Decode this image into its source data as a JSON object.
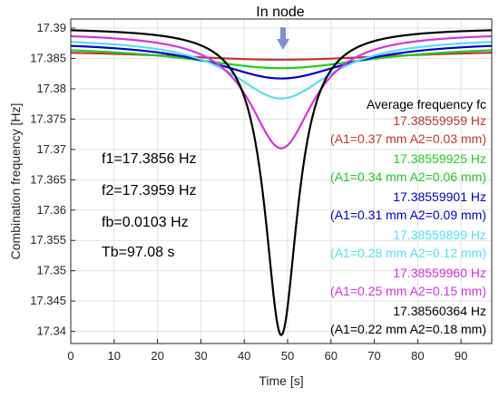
{
  "chart_data": {
    "type": "line",
    "title": "",
    "xlabel": "Time [s]",
    "ylabel": "Combination frequency [Hz]",
    "xlim": [
      0,
      97.08
    ],
    "ylim": [
      17.338,
      17.3915
    ],
    "x_ticks": [
      0,
      10,
      20,
      30,
      40,
      50,
      60,
      70,
      80,
      90
    ],
    "y_ticks": [
      17.34,
      17.345,
      17.35,
      17.355,
      17.36,
      17.365,
      17.37,
      17.375,
      17.38,
      17.385,
      17.39
    ],
    "grid": true,
    "dip_center_x": 48.54,
    "series": [
      {
        "color": "#C0392B",
        "baseline": 17.3865,
        "minimum": 17.3848,
        "width": 34
      },
      {
        "color": "#22CC22",
        "baseline": 17.3872,
        "minimum": 17.3834,
        "width": 26
      },
      {
        "color": "#0000D0",
        "baseline": 17.3879,
        "minimum": 17.3817,
        "width": 19
      },
      {
        "color": "#55E0F0",
        "baseline": 17.3885,
        "minimum": 17.3784,
        "width": 14
      },
      {
        "color": "#D633E0",
        "baseline": 17.3893,
        "minimum": 17.3702,
        "width": 9
      },
      {
        "color": "#000000",
        "baseline": 17.3901,
        "minimum": 17.3394,
        "width": 4.6
      }
    ],
    "annotations": {
      "node_label": "In node",
      "params": [
        "f1=17.3856 Hz",
        "f2=17.3959 Hz",
        "fb=0.0103 Hz",
        "Tb=97.08 s"
      ]
    },
    "legend": {
      "title": "Average frequency fc",
      "entries": [
        {
          "value": "17.38559959 Hz",
          "params": "(A1=0.37 mm A2=0.03 mm)",
          "color": "#C0392B"
        },
        {
          "value": "17.38559925 Hz",
          "params": "(A1=0.34 mm A2=0.06 mm)",
          "color": "#22CC22"
        },
        {
          "value": "17.38559901 Hz",
          "params": "(A1=0.31 mm A2=0.09 mm)",
          "color": "#0000D0"
        },
        {
          "value": "17.38559899 Hz",
          "params": "(A1=0.28 mm A2=0.12 mm)",
          "color": "#55E0F0"
        },
        {
          "value": "17.38559960 Hz",
          "params": "(A1=0.25 mm A2=0.15 mm)",
          "color": "#D633E0"
        },
        {
          "value": "17.38560364 Hz",
          "params": "(A1=0.22 mm A2=0.18 mm)",
          "color": "#000000"
        }
      ]
    }
  }
}
